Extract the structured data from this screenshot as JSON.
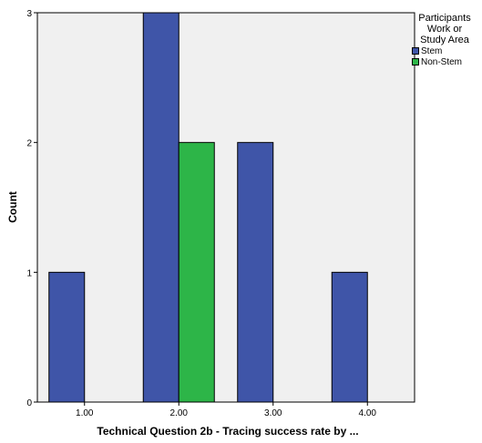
{
  "chart_data": {
    "type": "bar",
    "xlabel": "Technical Question 2b - Tracing success rate by ...",
    "ylabel": "Count",
    "categories": [
      "1.00",
      "2.00",
      "3.00",
      "4.00"
    ],
    "series": [
      {
        "name": "Stem",
        "color": "#3f55a8",
        "values": [
          1,
          3,
          2,
          1
        ]
      },
      {
        "name": "Non-Stem",
        "color": "#2db548",
        "values": [
          0,
          2,
          0,
          0
        ]
      }
    ],
    "ylim": [
      0,
      3
    ],
    "yticks": [
      "0",
      "1",
      "2",
      "3"
    ],
    "grid": false,
    "legend": {
      "title_lines": [
        "Participants",
        "Work or",
        "Study Area"
      ],
      "placement": "right"
    },
    "plot_background": "#f0f0f0"
  }
}
